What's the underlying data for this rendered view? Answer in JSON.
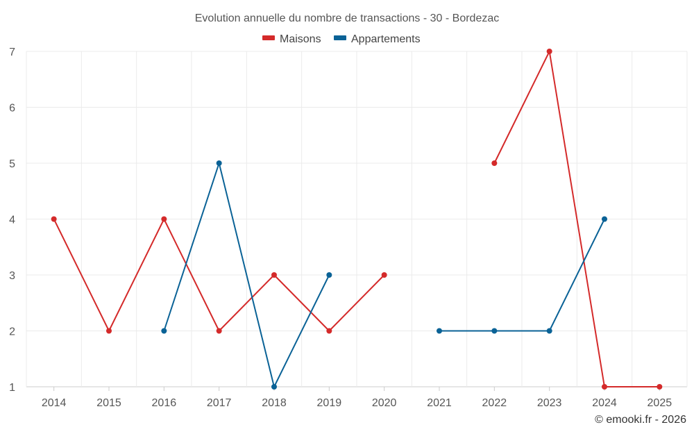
{
  "chart_data": {
    "type": "line",
    "title": "Evolution annuelle du nombre de transactions - 30 - Bordezac",
    "categories": [
      "2014",
      "2015",
      "2016",
      "2017",
      "2018",
      "2019",
      "2020",
      "2021",
      "2022",
      "2023",
      "2024",
      "2025"
    ],
    "ylim": [
      1,
      7
    ],
    "yticks": [
      1,
      2,
      3,
      4,
      5,
      6,
      7
    ],
    "grid": true,
    "legend_position": "top-center",
    "series": [
      {
        "name": "Maisons",
        "color": "#d42a2a",
        "values": [
          4,
          2,
          4,
          2,
          3,
          2,
          3,
          null,
          5,
          7,
          1,
          1
        ]
      },
      {
        "name": "Appartements",
        "color": "#0a6296",
        "values": [
          null,
          null,
          2,
          5,
          1,
          3,
          null,
          2,
          2,
          2,
          4,
          null
        ]
      }
    ],
    "xlabel": "",
    "ylabel": ""
  },
  "credit": "© emooki.fr - 2026"
}
